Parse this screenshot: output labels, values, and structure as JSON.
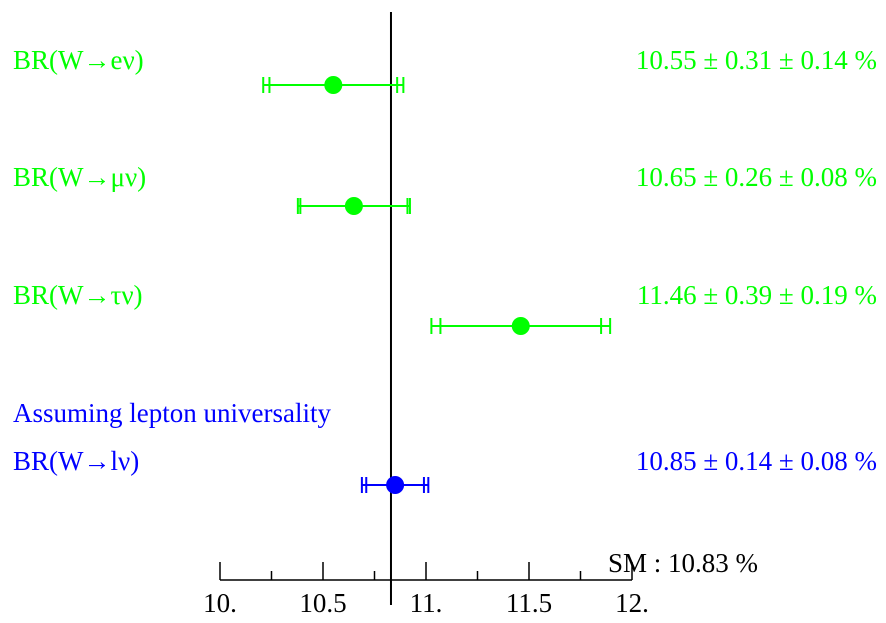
{
  "chart_data": {
    "type": "scatter",
    "xlim": [
      10.0,
      12.0
    ],
    "x_ticks": [
      {
        "value": 10.0,
        "label": "10."
      },
      {
        "value": 10.5,
        "label": "10.5"
      },
      {
        "value": 11.0,
        "label": "11."
      },
      {
        "value": 11.5,
        "label": "11.5"
      },
      {
        "value": 12.0,
        "label": "12."
      }
    ],
    "minor_tick_step": 0.25,
    "reference": {
      "value": 10.83,
      "label": "SM : 10.83 %"
    },
    "header_note": {
      "text": "Assuming lepton universality",
      "color": "#0000ff"
    },
    "points": [
      {
        "label": "BR(W→eν)",
        "value": 10.55,
        "stat": 0.31,
        "syst": 0.14,
        "value_text": "10.55 ± 0.31 ± 0.14 %",
        "color": "#00ff00"
      },
      {
        "label": "BR(W→μν)",
        "value": 10.65,
        "stat": 0.26,
        "syst": 0.08,
        "value_text": "10.65 ± 0.26 ± 0.08 %",
        "color": "#00ff00"
      },
      {
        "label": "BR(W→τν)",
        "value": 11.46,
        "stat": 0.39,
        "syst": 0.19,
        "value_text": "11.46 ± 0.39 ± 0.19 %",
        "color": "#00ff00"
      },
      {
        "label": "BR(W→lν)",
        "value": 10.85,
        "stat": 0.14,
        "syst": 0.08,
        "value_text": "10.85 ± 0.14 ± 0.08 %",
        "color": "#0000ff"
      }
    ]
  }
}
